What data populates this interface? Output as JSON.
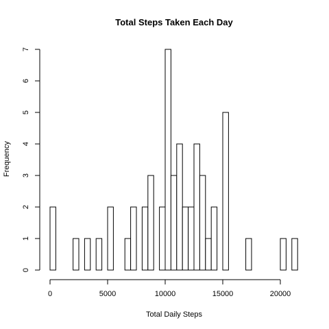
{
  "chart_data": {
    "type": "bar",
    "title": "Total Steps Taken Each Day",
    "xlabel": "Total Daily Steps",
    "ylabel": "Frequency",
    "bin_width": 500,
    "bin_starts": [
      0,
      500,
      1000,
      1500,
      2000,
      2500,
      3000,
      3500,
      4000,
      4500,
      5000,
      5500,
      6000,
      6500,
      7000,
      7500,
      8000,
      8500,
      9000,
      9500,
      10000,
      10500,
      11000,
      11500,
      12000,
      12500,
      13000,
      13500,
      14000,
      14500,
      15000,
      15500,
      16000,
      16500,
      17000,
      17500,
      18000,
      18500,
      19000,
      19500,
      20000,
      20500,
      21000
    ],
    "values": [
      2,
      0,
      0,
      0,
      1,
      0,
      1,
      0,
      1,
      0,
      2,
      0,
      0,
      1,
      2,
      0,
      2,
      3,
      0,
      2,
      7,
      3,
      4,
      2,
      2,
      4,
      3,
      1,
      2,
      0,
      5,
      0,
      0,
      0,
      1,
      0,
      0,
      0,
      0,
      0,
      1,
      0,
      1
    ],
    "xlim": [
      0,
      21500
    ],
    "ylim": [
      0,
      7
    ],
    "x_ticks": [
      0,
      5000,
      10000,
      15000,
      20000
    ],
    "x_tick_labels": [
      "0",
      "5000",
      "10000",
      "15000",
      "20000"
    ],
    "y_ticks": [
      0,
      1,
      2,
      3,
      4,
      5,
      6,
      7
    ],
    "y_tick_labels": [
      "0",
      "1",
      "2",
      "3",
      "4",
      "5",
      "6",
      "7"
    ],
    "grid": false
  }
}
